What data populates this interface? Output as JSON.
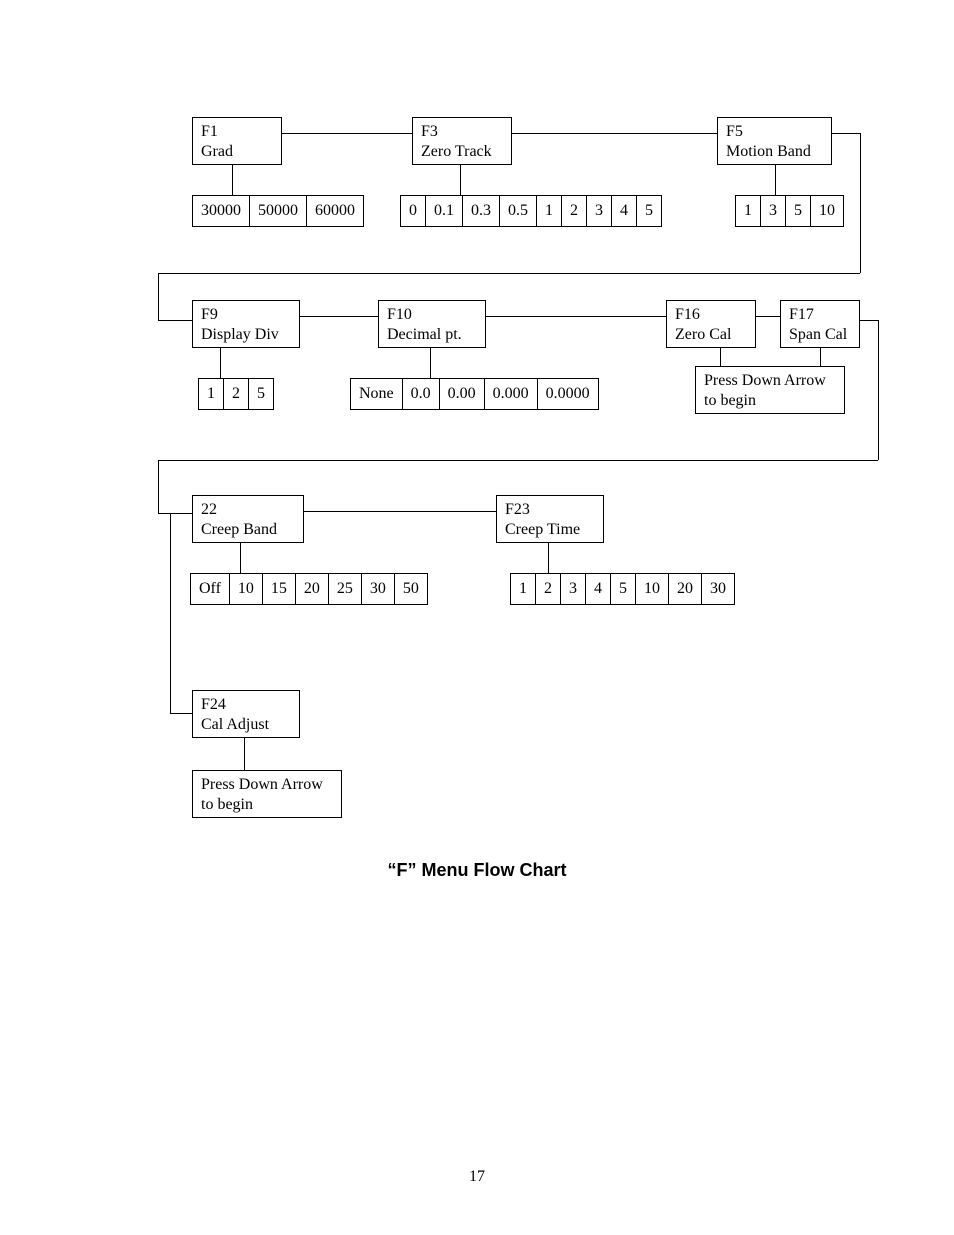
{
  "title": "“F” Menu Flow Chart",
  "page_number": "17",
  "colors": {
    "background": "#ffffff",
    "border": "#000000",
    "text": "#000000"
  },
  "typography": {
    "body_font": "Times New Roman",
    "body_size_pt": 12,
    "title_font": "Arial",
    "title_size_pt": 14,
    "title_weight": "bold"
  },
  "nodes": {
    "f1": {
      "code": "F1",
      "label": "Grad",
      "options": [
        "30000",
        "50000",
        "60000"
      ]
    },
    "f3": {
      "code": "F3",
      "label": "Zero Track",
      "options": [
        "0",
        "0.1",
        "0.3",
        "0.5",
        "1",
        "2",
        "3",
        "4",
        "5"
      ]
    },
    "f5": {
      "code": "F5",
      "label": "Motion Band",
      "options": [
        "1",
        "3",
        "5",
        "10"
      ]
    },
    "f9": {
      "code": "F9",
      "label": "Display Div",
      "options": [
        "1",
        "2",
        "5"
      ]
    },
    "f10": {
      "code": "F10",
      "label": "Decimal pt.",
      "options": [
        "None",
        "0.0",
        "0.00",
        "0.000",
        "0.0000"
      ]
    },
    "f16": {
      "code": "F16",
      "label": "Zero Cal",
      "action": "Press Down Arrow to begin"
    },
    "f17": {
      "code": "F17",
      "label": "Span Cal"
    },
    "f22": {
      "code": "22",
      "label": "Creep Band",
      "options": [
        "Off",
        "10",
        "15",
        "20",
        "25",
        "30",
        "50"
      ]
    },
    "f23": {
      "code": "F23",
      "label": "Creep Time",
      "options": [
        "1",
        "2",
        "3",
        "4",
        "5",
        "10",
        "20",
        "30"
      ]
    },
    "f24": {
      "code": "F24",
      "label": "Cal Adjust",
      "action": "Press Down Arrow to begin"
    }
  }
}
